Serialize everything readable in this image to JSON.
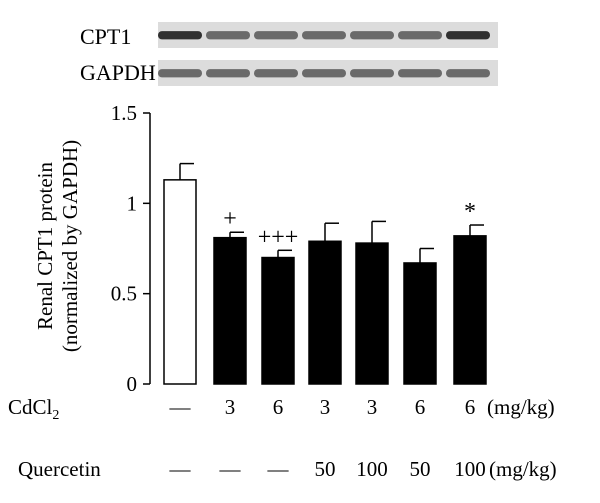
{
  "chart_data": {
    "type": "bar",
    "ylabel_line1": "Renal CPT1 protein",
    "ylabel_line2": "(normalized by GAPDH)",
    "ylim": [
      0,
      1.5
    ],
    "yticks": [
      "0",
      "0.5",
      "1",
      "1.5"
    ],
    "grid": false,
    "bars": [
      {
        "value": 1.13,
        "error": 0.09,
        "fill": "white",
        "annotation": ""
      },
      {
        "value": 0.81,
        "error": 0.03,
        "fill": "black",
        "annotation": "+"
      },
      {
        "value": 0.7,
        "error": 0.04,
        "fill": "black",
        "annotation": "+++"
      },
      {
        "value": 0.79,
        "error": 0.1,
        "fill": "black",
        "annotation": ""
      },
      {
        "value": 0.78,
        "error": 0.12,
        "fill": "black",
        "annotation": ""
      },
      {
        "value": 0.67,
        "error": 0.08,
        "fill": "black",
        "annotation": ""
      },
      {
        "value": 0.82,
        "error": 0.06,
        "fill": "black",
        "annotation": "*"
      }
    ],
    "cdcl2": {
      "label": "CdCl",
      "label_subscript": "2",
      "values": [
        "—",
        "3",
        "6",
        "3",
        "3",
        "6",
        "6"
      ],
      "unit": "(mg/kg)"
    },
    "quercetin": {
      "label": "Quercetin",
      "values": [
        "—",
        "—",
        "—",
        "50",
        "100",
        "50",
        "100"
      ],
      "unit": "(mg/kg)"
    }
  },
  "blots": {
    "cpt1_label": "CPT1",
    "gapdh_label": "GAPDH"
  },
  "colors": {
    "ink": "#000000",
    "paper": "#ffffff",
    "blot_background": "#dcdcdc",
    "band_dark": "#303030",
    "band_light": "#6a6a6a"
  }
}
